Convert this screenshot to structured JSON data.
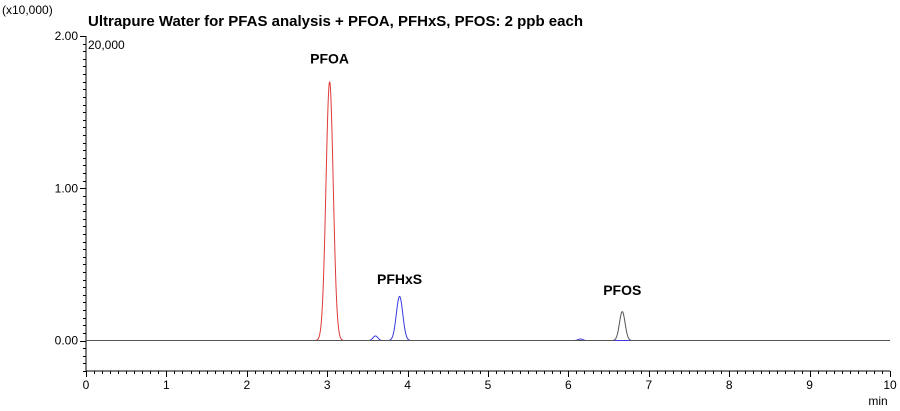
{
  "chart_data": {
    "type": "line",
    "title": "Ultrapure Water for PFAS analysis + PFOA, PFHxS, PFOS: 2 ppb each",
    "y_multiplier_label": "(x10,000)",
    "y_max_label": "20,000",
    "xlabel": "min",
    "ylabel": "",
    "xlim": [
      0,
      10
    ],
    "ylim": [
      -0.2,
      2.0
    ],
    "x_ticks": [
      "0",
      "1",
      "2",
      "3",
      "4",
      "5",
      "6",
      "7",
      "8",
      "9",
      "10"
    ],
    "y_ticks": [
      "0.00",
      "1.00",
      "2.00"
    ],
    "grid": false,
    "series": [
      {
        "color": "#e03a3a",
        "peaks": [
          {
            "rt": 3.03,
            "height": 1.7,
            "width": 0.045
          }
        ]
      },
      {
        "color": "#3a3ae0",
        "peaks": [
          {
            "rt": 3.6,
            "height": 0.03,
            "width": 0.03
          },
          {
            "rt": 3.9,
            "height": 0.29,
            "width": 0.04
          },
          {
            "rt": 6.15,
            "height": 0.01,
            "width": 0.03
          }
        ]
      },
      {
        "color": "#555555",
        "peaks": [
          {
            "rt": 6.67,
            "height": 0.19,
            "width": 0.035
          }
        ]
      }
    ],
    "annotations": [
      {
        "text": "PFOA",
        "x": 3.03,
        "y": 1.82
      },
      {
        "text": "PFHxS",
        "x": 3.9,
        "y": 0.37
      },
      {
        "text": "PFOS",
        "x": 6.67,
        "y": 0.3
      }
    ]
  }
}
